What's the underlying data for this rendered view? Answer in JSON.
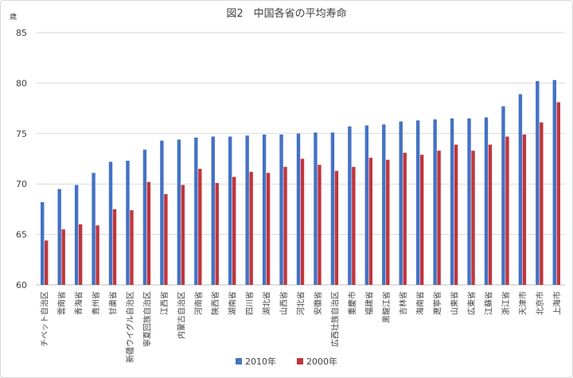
{
  "chart_data": {
    "type": "bar",
    "title": "図2　中国各省の平均寿命",
    "unit_label": "歳",
    "ylim": [
      60,
      85
    ],
    "yticks": [
      60,
      65,
      70,
      75,
      80,
      85
    ],
    "grid": true,
    "legend_position": "bottom",
    "categories": [
      "チベット自治区",
      "雲南省",
      "青海省",
      "貴州省",
      "甘粛省",
      "新疆ウイグル自治区",
      "寧夏回族自治区",
      "江西省",
      "内蒙古自治区",
      "河南省",
      "陝西省",
      "湖南省",
      "四川省",
      "湖北省",
      "山西省",
      "河北省",
      "安徽省",
      "広西壮族自治区",
      "重慶市",
      "福建省",
      "黒龍江省",
      "吉林省",
      "海南省",
      "遼寧省",
      "山東省",
      "広東省",
      "江蘇省",
      "浙江省",
      "天津市",
      "北京市",
      "上海市"
    ],
    "series": [
      {
        "name": "2010年",
        "color": "#4472c4",
        "values": [
          68.2,
          69.5,
          69.9,
          71.1,
          72.2,
          72.3,
          73.4,
          74.3,
          74.4,
          74.6,
          74.7,
          74.7,
          74.8,
          74.9,
          74.9,
          75.0,
          75.1,
          75.1,
          75.7,
          75.8,
          75.9,
          76.2,
          76.3,
          76.4,
          76.5,
          76.5,
          76.6,
          77.7,
          78.9,
          80.2,
          80.3
        ]
      },
      {
        "name": "2000年",
        "color": "#c0363d",
        "values": [
          64.4,
          65.5,
          66.0,
          65.9,
          67.5,
          67.4,
          70.2,
          69.0,
          69.9,
          71.5,
          70.1,
          70.7,
          71.2,
          71.1,
          71.7,
          72.5,
          71.9,
          71.3,
          71.7,
          72.6,
          72.4,
          73.1,
          72.9,
          73.3,
          73.9,
          73.3,
          73.9,
          74.7,
          74.9,
          76.1,
          78.1
        ]
      }
    ]
  }
}
